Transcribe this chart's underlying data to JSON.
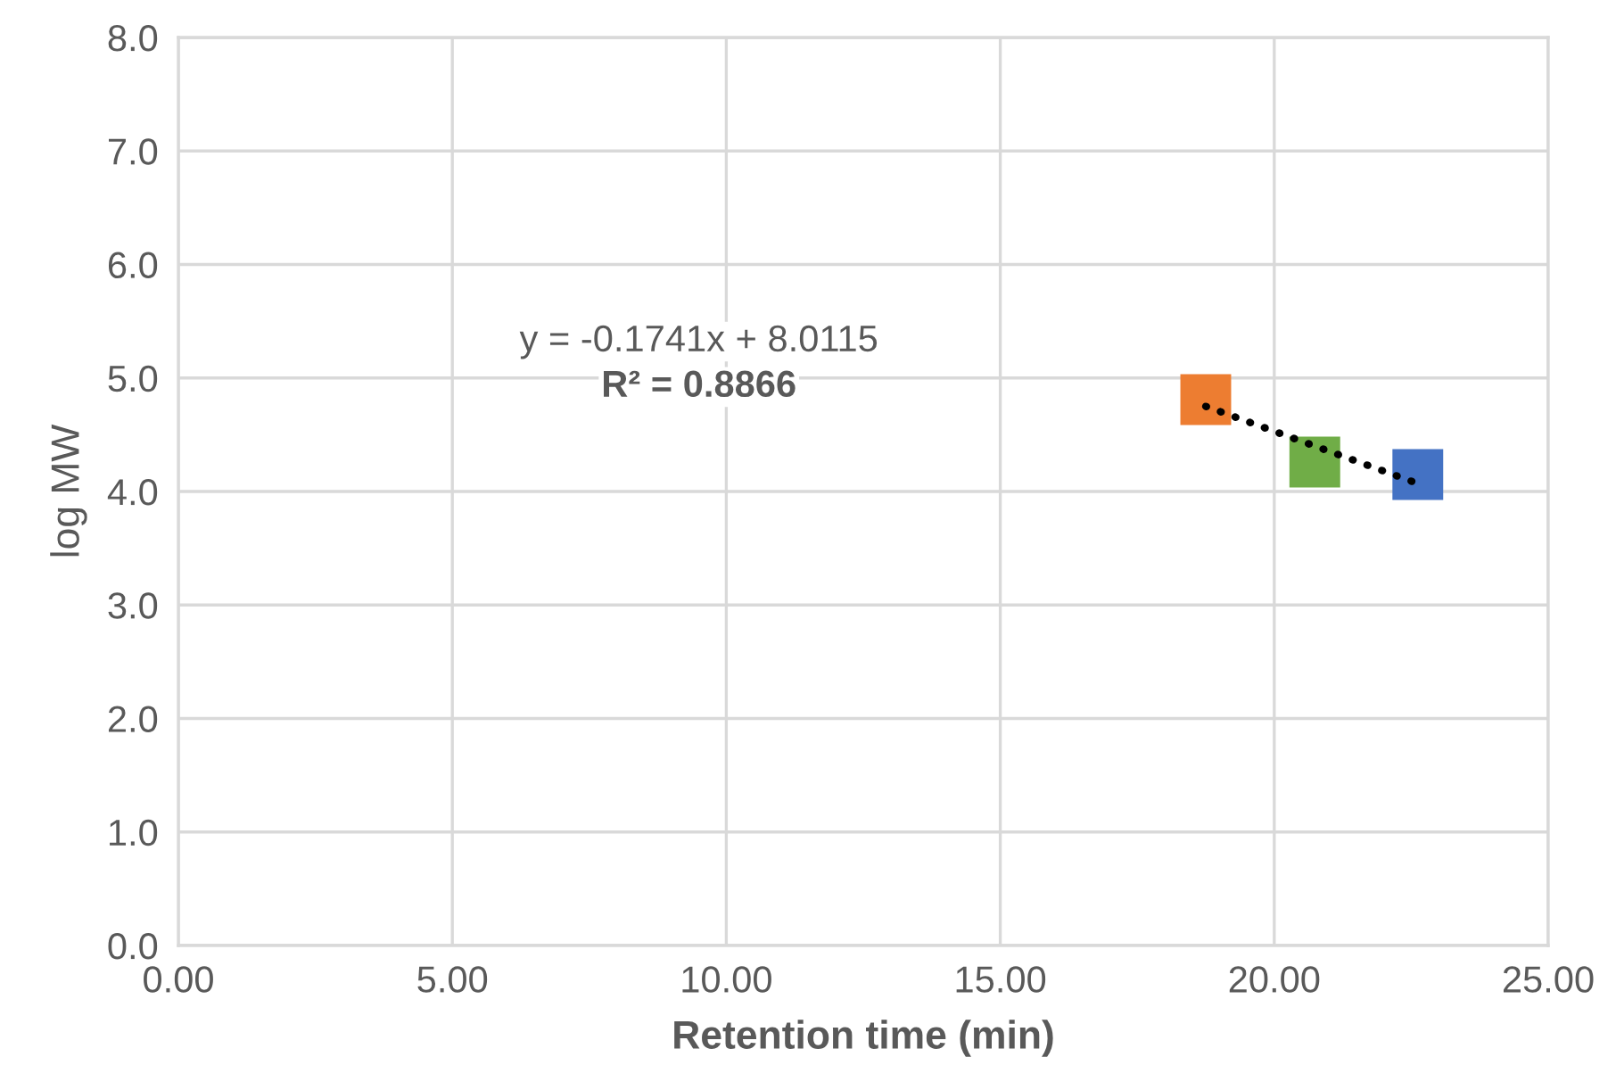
{
  "chart_data": {
    "type": "scatter",
    "xlabel": "Retention time (min)",
    "ylabel": "log MW",
    "xlim": [
      0,
      25
    ],
    "ylim": [
      0,
      8
    ],
    "xticks": [
      {
        "value": 0,
        "label": "0.00"
      },
      {
        "value": 5,
        "label": "5.00"
      },
      {
        "value": 10,
        "label": "10.00"
      },
      {
        "value": 15,
        "label": "15.00"
      },
      {
        "value": 20,
        "label": "20.00"
      },
      {
        "value": 25,
        "label": "25.00"
      }
    ],
    "yticks": [
      {
        "value": 0,
        "label": "0.0"
      },
      {
        "value": 1,
        "label": "1.0"
      },
      {
        "value": 2,
        "label": "2.0"
      },
      {
        "value": 3,
        "label": "3.0"
      },
      {
        "value": 4,
        "label": "4.0"
      },
      {
        "value": 5,
        "label": "5.0"
      },
      {
        "value": 6,
        "label": "6.0"
      },
      {
        "value": 7,
        "label": "7.0"
      },
      {
        "value": 8,
        "label": "8.0"
      }
    ],
    "grid": true,
    "legend": false,
    "marker": "square",
    "series": [
      {
        "x": [
          18.75,
          20.74,
          22.62
        ],
        "values": [
          4.81,
          4.26,
          4.15
        ],
        "colors": [
          "#ed7d31",
          "#70ad47",
          "#4472c4"
        ]
      },
      {
        "type": "line",
        "x": [
          18.75,
          22.62
        ],
        "values": [
          4.75,
          4.07
        ],
        "color": "#000000",
        "line_style": "dotted",
        "marker": "none"
      }
    ],
    "annotations": [
      "y = -0.1741x + 8.0115",
      "R² = 0.8866"
    ]
  }
}
